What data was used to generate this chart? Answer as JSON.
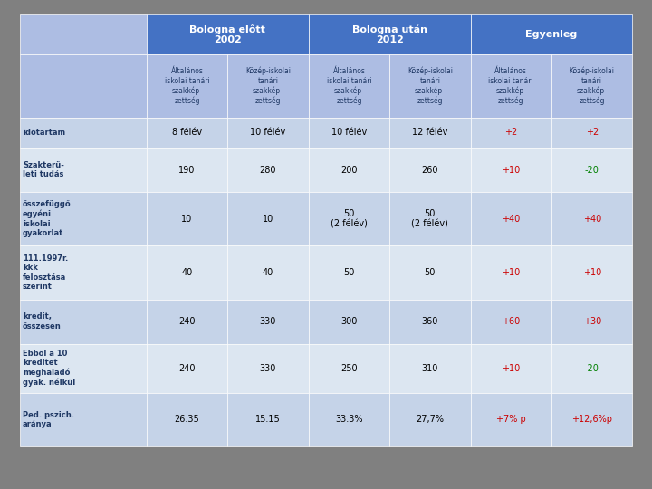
{
  "header_row1": [
    "",
    "Bologna előtt\n2002",
    "",
    "Bologna után\n2012",
    "",
    "Egyenleg",
    ""
  ],
  "header_row2": [
    "",
    "Általános\niskolai tanári\nszakkép-\nzettség",
    "Közép-iskolai\ntanári\nszakkép-\nzettség",
    "Általános\niskolai tanári\nszakkép-\nzettség",
    "Közép-iskolai\ntanári\nszakkép-\nzettség",
    "Általános\niskolai tanári\nszakkép-\nzettség",
    "Közép-iskolai\ntanári\nszakkép-\nzettség"
  ],
  "rows": [
    {
      "label": "időtartam",
      "values": [
        "8 félév",
        "10 félév",
        "10 félév",
        "12 félév",
        "+2",
        "+2"
      ],
      "colors": [
        "#000000",
        "#000000",
        "#000000",
        "#000000",
        "#cc0000",
        "#cc0000"
      ]
    },
    {
      "label": "Szakterü-\nleti tudás",
      "values": [
        "190",
        "280",
        "200",
        "260",
        "+10",
        "-20"
      ],
      "colors": [
        "#000000",
        "#000000",
        "#000000",
        "#000000",
        "#cc0000",
        "#008000"
      ]
    },
    {
      "label": "összefüggő\negyéni\niskolai\ngyakorlat",
      "values": [
        "10",
        "10",
        "50\n(2 félév)",
        "50\n(2 félév)",
        "+40",
        "+40"
      ],
      "colors": [
        "#000000",
        "#000000",
        "#000000",
        "#000000",
        "#cc0000",
        "#cc0000"
      ]
    },
    {
      "label": "111.1997r.\nkkk\nfelosztása\nszerint",
      "values": [
        "40",
        "40",
        "50",
        "50",
        "+10",
        "+10"
      ],
      "colors": [
        "#000000",
        "#000000",
        "#000000",
        "#000000",
        "#cc0000",
        "#cc0000"
      ]
    },
    {
      "label": "kredit,\nösszesen",
      "values": [
        "240",
        "330",
        "300",
        "360",
        "+60",
        "+30"
      ],
      "colors": [
        "#000000",
        "#000000",
        "#000000",
        "#000000",
        "#cc0000",
        "#cc0000"
      ]
    },
    {
      "label": "Ebből a 10\nkreditet\nmeghaladó\ngyak. nélkül",
      "values": [
        "240",
        "330",
        "250",
        "310",
        "+10",
        "-20"
      ],
      "colors": [
        "#000000",
        "#000000",
        "#000000",
        "#000000",
        "#cc0000",
        "#008000"
      ]
    },
    {
      "label": "Ped. pszich.\naránya",
      "values": [
        "26.35",
        "15.15",
        "33.3%",
        "27,7%",
        "+7% p",
        "+12,6%p"
      ],
      "colors": [
        "#000000",
        "#000000",
        "#000000",
        "#000000",
        "#cc0000",
        "#cc0000"
      ]
    }
  ],
  "header_bg": "#4472c4",
  "header_text": "#ffffff",
  "subheader_bg": "#adbde3",
  "row_odd_bg": "#dce6f1",
  "row_even_bg": "#c5d3e8",
  "label_text_color": "#1f3864",
  "value_text_color": "#1f3864",
  "outer_bg": "#808080"
}
